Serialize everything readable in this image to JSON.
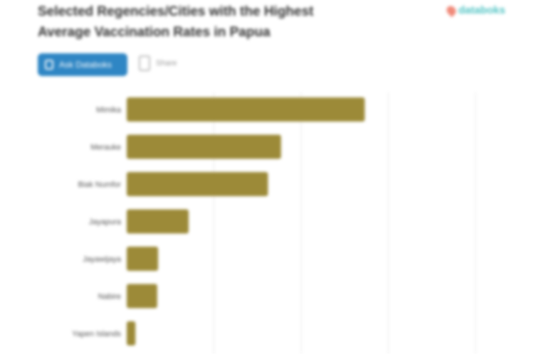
{
  "header": {
    "title": "Selected Regencies/Cities with the Highest Average Vaccination Rates in Papua",
    "logo": "databoks",
    "ask_label": "Ask Databoks",
    "share_label": "Share"
  },
  "chart_data": {
    "type": "bar",
    "orientation": "horizontal",
    "title": "Selected Regencies/Cities with the Highest Average Vaccination Rates in Papua",
    "categories": [
      "Mimika",
      "Merauke",
      "Biak Numfor",
      "Jayapura",
      "Jayawijaya",
      "Nabire",
      "Yapen Islands"
    ],
    "values": [
      2.73,
      1.77,
      1.62,
      0.71,
      0.36,
      0.35,
      0.1
    ],
    "xlim": [
      0,
      4.5
    ],
    "grid": true,
    "color": "#9c8a38"
  }
}
